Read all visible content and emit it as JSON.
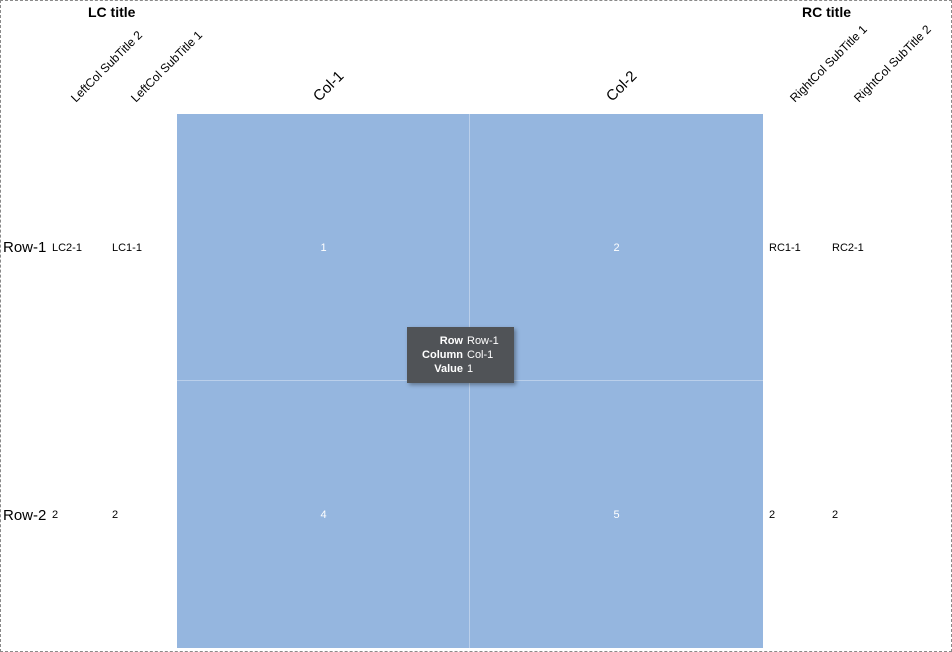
{
  "chart_data": {
    "type": "heatmap",
    "rows": [
      "Row-1",
      "Row-2"
    ],
    "columns": [
      "Col-1",
      "Col-2"
    ],
    "values": [
      [
        1,
        2
      ],
      [
        4,
        5
      ]
    ],
    "cell_color": "#95b6df",
    "left_columns": {
      "title": "LC title",
      "subtitles": [
        "LeftCol SubTitle 2",
        "LeftCol SubTitle 1"
      ],
      "values": [
        [
          "LC2-1",
          "LC1-1"
        ],
        [
          "2",
          "2"
        ]
      ]
    },
    "right_columns": {
      "title": "RC title",
      "subtitles": [
        "RightCol SubTitle 1",
        "RightCol SubTitle 2"
      ],
      "values": [
        [
          "RC1-1",
          "RC2-1"
        ],
        [
          "2",
          "2"
        ]
      ]
    },
    "tooltip": {
      "fields": [
        {
          "key": "Row",
          "value": "Row-1"
        },
        {
          "key": "Column",
          "value": "Col-1"
        },
        {
          "key": "Value",
          "value": "1"
        }
      ]
    }
  }
}
